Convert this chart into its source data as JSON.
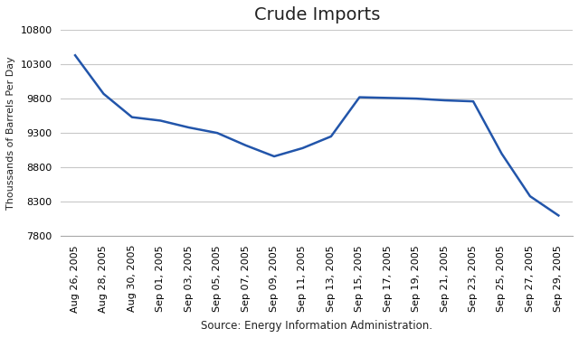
{
  "title": "Crude Imports",
  "xlabel": "Source: Energy Information Administration.",
  "ylabel": "Thoussands of Barrels Per Day",
  "line_color": "#2255AA",
  "background_color": "#ffffff",
  "plot_bg_color": "#ffffff",
  "grid_color": "#c8c8c8",
  "x_labels": [
    "Aug 26, 2005",
    "Aug 28, 2005",
    "Aug 30, 2005",
    "Sep 01, 2005",
    "Sep 03, 2005",
    "Sep 05, 2005",
    "Sep 07, 2005",
    "Sep 09, 2005",
    "Sep 11, 2005",
    "Sep 13, 2005",
    "Sep 15, 2005",
    "Sep 17, 2005",
    "Sep 19, 2005",
    "Sep 21, 2005",
    "Sep 23, 2005",
    "Sep 25, 2005",
    "Sep 27, 2005",
    "Sep 29, 2005"
  ],
  "y_values": [
    10430,
    9870,
    9530,
    9480,
    9380,
    9300,
    9120,
    8960,
    9080,
    9250,
    9820,
    9810,
    9800,
    9775,
    9760,
    9000,
    8380,
    8100
  ],
  "ylim": [
    7800,
    10800
  ],
  "yticks": [
    7800,
    8300,
    8800,
    9300,
    9800,
    10300,
    10800
  ],
  "line_width": 1.8,
  "title_fontsize": 14,
  "tick_fontsize": 8,
  "xlabel_fontsize": 8.5,
  "ylabel_fontsize": 8
}
